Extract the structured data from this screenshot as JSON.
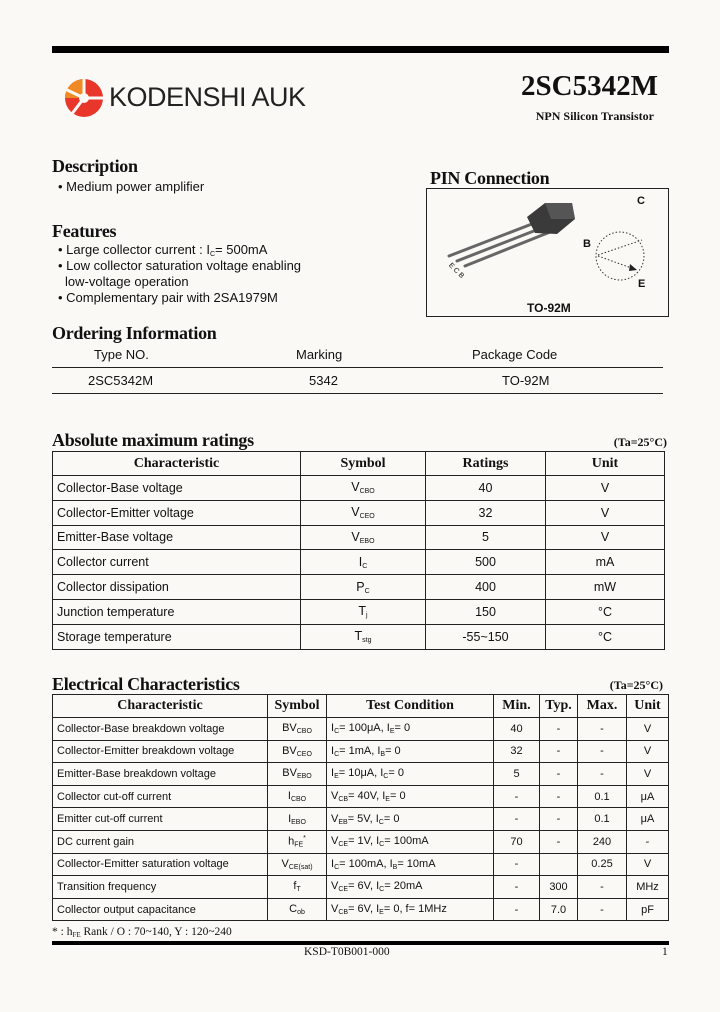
{
  "header": {
    "brand": "KODENSHI AUK",
    "part_number": "2SC5342M",
    "subtitle": "NPN Silicon Transistor",
    "logo_colors": [
      "#e8362b",
      "#f08a24"
    ]
  },
  "description": {
    "title": "Description",
    "items": [
      "Medium power amplifier"
    ]
  },
  "features": {
    "title": "Features",
    "items": [
      [
        {
          "t": "Large collector current : I"
        },
        {
          "s": "C"
        },
        {
          "t": "= 500mA"
        }
      ],
      [
        {
          "t": "Low collector saturation voltage enabling"
        }
      ],
      [
        {
          "t": "low-voltage operation"
        }
      ],
      [
        {
          "t": "Complementary pair with 2SA1979M"
        }
      ]
    ]
  },
  "pin": {
    "title": "PIN Connection",
    "package": "TO-92M",
    "labels": {
      "c": "C",
      "b": "B",
      "e": "E"
    },
    "lead_labels": "E C B"
  },
  "ordering": {
    "title": "Ordering Information",
    "headers": [
      "Type NO.",
      "Marking",
      "Package Code"
    ],
    "row": [
      "2SC5342M",
      "5342",
      "TO-92M"
    ]
  },
  "absolute": {
    "title": "Absolute maximum ratings",
    "condition": "(Ta=25°C)",
    "headers": [
      "Characteristic",
      "Symbol",
      "Ratings",
      "Unit"
    ],
    "rows": [
      {
        "name": "Collector-Base voltage",
        "sym": "V",
        "sub": "CBO",
        "val": "40",
        "unit": "V"
      },
      {
        "name": "Collector-Emitter voltage",
        "sym": "V",
        "sub": "CEO",
        "val": "32",
        "unit": "V"
      },
      {
        "name": "Emitter-Base voltage",
        "sym": "V",
        "sub": "EBO",
        "val": "5",
        "unit": "V"
      },
      {
        "name": "Collector current",
        "sym": "I",
        "sub": "C",
        "val": "500",
        "unit": "mA"
      },
      {
        "name": "Collector dissipation",
        "sym": "P",
        "sub": "C",
        "val": "400",
        "unit": "mW"
      },
      {
        "name": "Junction temperature",
        "sym": "T",
        "sub": "j",
        "val": "150",
        "unit": "°C"
      },
      {
        "name": "Storage temperature",
        "sym": "T",
        "sub": "stg",
        "val": "-55~150",
        "unit": "°C"
      }
    ]
  },
  "electrical": {
    "title": "Electrical Characteristics",
    "condition": "(Ta=25°C)",
    "headers": [
      "Characteristic",
      "Symbol",
      "Test Condition",
      "Min.",
      "Typ.",
      "Max.",
      "Unit"
    ],
    "rows": [
      {
        "name": "Collector-Base breakdown voltage",
        "sym": "BV",
        "sub": "CBO",
        "cond": [
          {
            "t": "I"
          },
          {
            "s": "C"
          },
          {
            "t": "= 100μA, I"
          },
          {
            "s": "E"
          },
          {
            "t": "= 0"
          }
        ],
        "min": "40",
        "typ": "-",
        "max": "-",
        "unit": "V"
      },
      {
        "name": "Collector-Emitter breakdown voltage",
        "sym": "BV",
        "sub": "CEO",
        "cond": [
          {
            "t": "I"
          },
          {
            "s": "C"
          },
          {
            "t": "= 1mA, I"
          },
          {
            "s": "B"
          },
          {
            "t": "= 0"
          }
        ],
        "min": "32",
        "typ": "-",
        "max": "-",
        "unit": "V"
      },
      {
        "name": "Emitter-Base breakdown voltage",
        "sym": "BV",
        "sub": "EBO",
        "cond": [
          {
            "t": "I"
          },
          {
            "s": "E"
          },
          {
            "t": "= 10μA, I"
          },
          {
            "s": "C"
          },
          {
            "t": "= 0"
          }
        ],
        "min": "5",
        "typ": "-",
        "max": "-",
        "unit": "V"
      },
      {
        "name": "Collector cut-off current",
        "sym": "I",
        "sub": "CBO",
        "cond": [
          {
            "t": "V"
          },
          {
            "s": "CB"
          },
          {
            "t": "= 40V, I"
          },
          {
            "s": "E"
          },
          {
            "t": "= 0"
          }
        ],
        "min": "-",
        "typ": "-",
        "max": "0.1",
        "unit": "μA"
      },
      {
        "name": "Emitter cut-off current",
        "sym": "I",
        "sub": "EBO",
        "cond": [
          {
            "t": "V"
          },
          {
            "s": "EB"
          },
          {
            "t": "= 5V, I"
          },
          {
            "s": "C"
          },
          {
            "t": "= 0"
          }
        ],
        "min": "-",
        "typ": "-",
        "max": "0.1",
        "unit": "μA"
      },
      {
        "name": "DC current gain",
        "sym": "h",
        "sub": "FE",
        "sup": "*",
        "cond": [
          {
            "t": "V"
          },
          {
            "s": "CE"
          },
          {
            "t": "= 1V, I"
          },
          {
            "s": "C"
          },
          {
            "t": "= 100mA"
          }
        ],
        "min": "70",
        "typ": "-",
        "max": "240",
        "unit": "-"
      },
      {
        "name": "Collector-Emitter saturation voltage",
        "sym": "V",
        "sub": "CE(sat)",
        "cond": [
          {
            "t": "I"
          },
          {
            "s": "C"
          },
          {
            "t": "= 100mA, I"
          },
          {
            "s": "B"
          },
          {
            "t": "= 10mA"
          }
        ],
        "min": "-",
        "typ": "",
        "max": "0.25",
        "unit": "V"
      },
      {
        "name": "Transition frequency",
        "sym": "f",
        "sub": "T",
        "cond": [
          {
            "t": "V"
          },
          {
            "s": "CE"
          },
          {
            "t": "= 6V, I"
          },
          {
            "s": "C"
          },
          {
            "t": "= 20mA"
          }
        ],
        "min": "-",
        "typ": "300",
        "max": "-",
        "unit": "MHz"
      },
      {
        "name": "Collector output capacitance",
        "sym": "C",
        "sub": "ob",
        "cond": [
          {
            "t": "V"
          },
          {
            "s": "CB"
          },
          {
            "t": "= 6V, I"
          },
          {
            "s": "E"
          },
          {
            "t": "= 0, f= 1MHz"
          }
        ],
        "min": "-",
        "typ": "7.0",
        "max": "-",
        "unit": "pF"
      }
    ]
  },
  "footnote": [
    {
      "t": "* : h"
    },
    {
      "s": "FE"
    },
    {
      "t": " Rank   /   O : 70~140, Y : 120~240"
    }
  ],
  "footer": {
    "doc_no": "KSD-T0B001-000",
    "page": "1"
  }
}
